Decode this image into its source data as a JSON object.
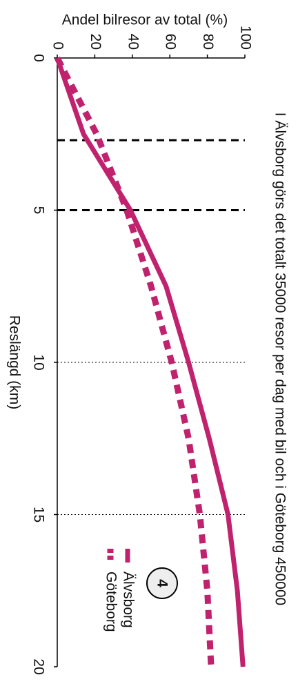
{
  "chart_data": {
    "type": "line",
    "title": "I Älvsborg görs det totalt 35000 resor per dag med bil och i Göteborg 450000",
    "x_label": "Reslängd (km)",
    "y_label": "Andel bilresor av total (%)",
    "x": [
      0,
      2.5,
      5,
      7.5,
      10,
      12.5,
      15,
      17.5,
      20
    ],
    "series": [
      {
        "name": "Älvsborg",
        "color": "#c0226e",
        "style": "solid",
        "values": [
          0,
          14,
          39,
          58,
          70,
          81,
          91,
          96,
          99
        ]
      },
      {
        "name": "Göteborg",
        "color": "#c0226e",
        "style": "dashed",
        "values": [
          0,
          21,
          37,
          50,
          61,
          70,
          76,
          80,
          82
        ]
      }
    ],
    "xlim": [
      0,
      20
    ],
    "xticks": [
      0,
      5,
      10,
      15,
      20
    ],
    "ylim": [
      0,
      100
    ],
    "yticks": [
      0,
      20,
      40,
      60,
      80,
      100
    ],
    "reference_lines": [
      {
        "value": 2.7,
        "style": "dashed"
      },
      {
        "value": 5,
        "style": "dashed"
      },
      {
        "value": 10,
        "style": "dotted"
      },
      {
        "value": 15,
        "style": "dotted"
      }
    ],
    "badge": "4"
  }
}
